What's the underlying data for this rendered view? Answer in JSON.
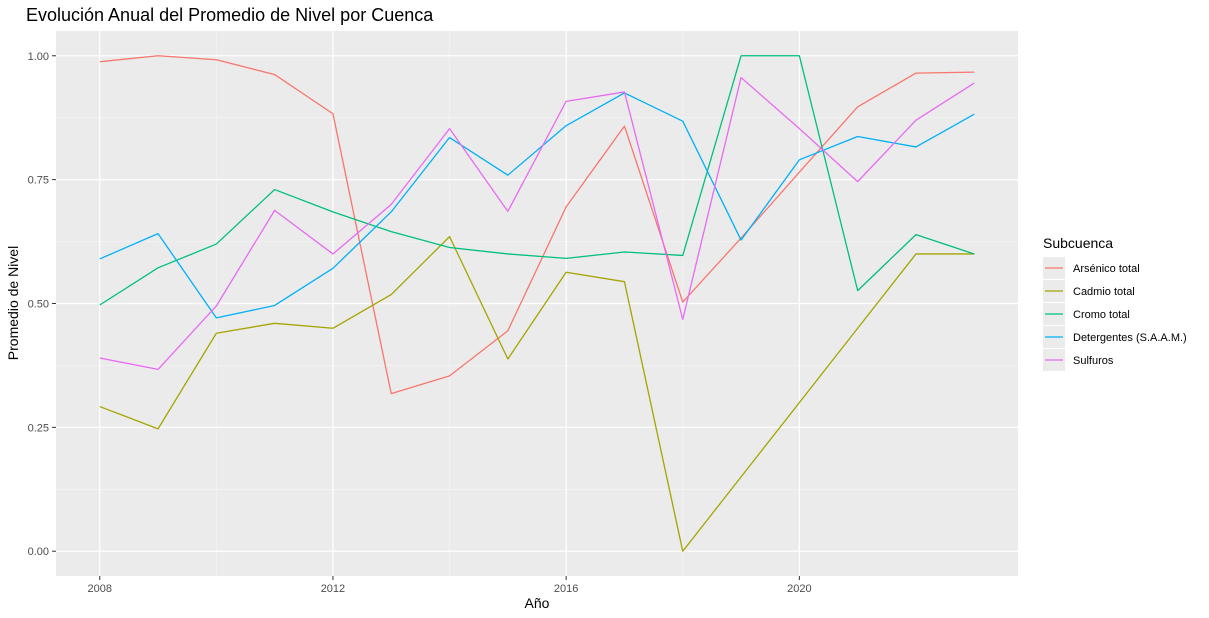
{
  "chart_data": {
    "type": "line",
    "title": "Evolución Anual del Promedio de Nivel por Cuenca",
    "xlabel": "Año",
    "ylabel": "Promedio de Nivel",
    "x": [
      2008,
      2009,
      2010,
      2011,
      2012,
      2013,
      2014,
      2015,
      2016,
      2017,
      2018,
      2019,
      2020,
      2021,
      2022,
      2023
    ],
    "xlim": [
      2007.25,
      2023.75
    ],
    "ylim": [
      -0.05,
      1.05
    ],
    "x_ticks": [
      2008,
      2012,
      2016,
      2020
    ],
    "y_ticks": [
      0.0,
      0.25,
      0.5,
      0.75,
      1.0
    ],
    "x_tick_labels": [
      "2008",
      "2012",
      "2016",
      "2020"
    ],
    "y_tick_labels": [
      "0.00",
      "0.25",
      "0.50",
      "0.75",
      "1.00"
    ],
    "grid": true,
    "legend": {
      "title": "Subcuenca",
      "placement": "right"
    },
    "colors": {
      "panel": "#EBEBEB",
      "grid_major": "#FFFFFF",
      "grid_minor": "#F5F5F5",
      "tick_text": "#4D4D4D"
    },
    "series": [
      {
        "name": "Arsénico total",
        "color": "#F8766D",
        "values": [
          0.988,
          1.0,
          0.992,
          0.962,
          0.883,
          0.318,
          0.354,
          0.445,
          0.695,
          0.858,
          0.503,
          0.632,
          0.765,
          0.897,
          0.965,
          0.967
        ]
      },
      {
        "name": "Cadmio total",
        "color": "#A3A500",
        "values": [
          0.292,
          0.247,
          0.44,
          0.46,
          0.45,
          0.518,
          0.635,
          0.388,
          0.563,
          0.544,
          0.0,
          0.15,
          0.3,
          0.45,
          0.6,
          0.6
        ]
      },
      {
        "name": "Cromo total",
        "color": "#00BF7D",
        "values": [
          0.497,
          0.572,
          0.62,
          0.73,
          0.685,
          0.645,
          0.613,
          0.6,
          0.591,
          0.604,
          0.597,
          1.0,
          1.0,
          0.526,
          0.639,
          0.6
        ]
      },
      {
        "name": "Detergentes (S.A.A.M.)",
        "color": "#00B0F6",
        "values": [
          0.59,
          0.641,
          0.471,
          0.496,
          0.571,
          0.685,
          0.835,
          0.759,
          0.859,
          0.925,
          0.868,
          0.628,
          0.79,
          0.837,
          0.816,
          0.882
        ]
      },
      {
        "name": "Sulfuros",
        "color": "#E76BF3",
        "values": [
          0.39,
          0.367,
          0.495,
          0.688,
          0.6,
          0.7,
          0.853,
          0.686,
          0.908,
          0.927,
          0.468,
          0.956,
          0.853,
          0.746,
          0.87,
          0.945
        ]
      }
    ]
  }
}
